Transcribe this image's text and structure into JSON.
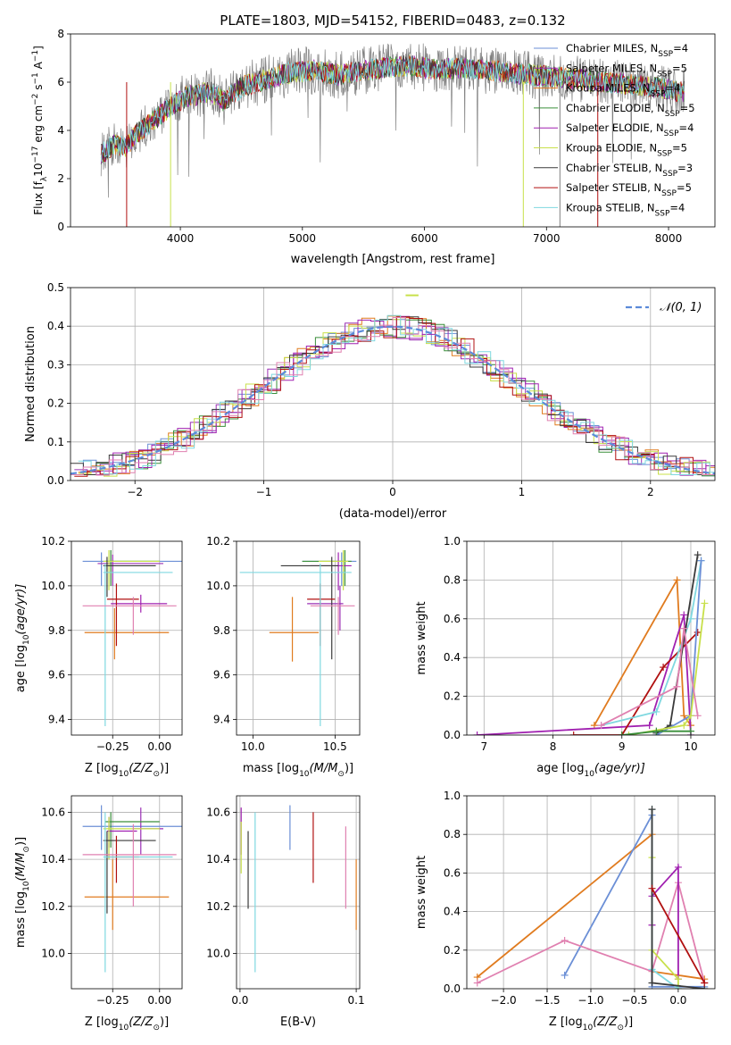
{
  "series_colors": {
    "Chabrier MILES": "#6b8fd6",
    "Salpeter MILES": "#9b30b5",
    "Kroupa MILES": "#e07b1f",
    "Chabrier ELODIE": "#3a8f3a",
    "Salpeter ELODIE": "#a020b0",
    "Kroupa ELODIE": "#c8e04a",
    "Chabrier STELIB": "#3a3a3a",
    "Salpeter STELIB": "#b01010",
    "Kroupa STELIB": "#7fd8e0",
    "data": "#808080",
    "pink": "#e080b0"
  },
  "chart_data": [
    {
      "id": "spectrum",
      "type": "line",
      "title": "PLATE=1803, MJD=54152, FIBERID=0483, z=0.132",
      "xlabel": "wavelength [Angstrom, rest frame]",
      "ylabel_pre": "Flux [f",
      "ylabel_sub": "λ",
      "ylabel_mid": "10",
      "ylabel_sup1": "−17",
      "ylabel_rest": " erg cm",
      "ylabel_sup2": "−2",
      "ylabel_s": " s",
      "ylabel_sup3": "−1",
      "ylabel_end": " A",
      "ylabel_sup4": "−1",
      "ylabel_close": "]",
      "xlim": [
        3100,
        8380
      ],
      "ylim": [
        0,
        8
      ],
      "xticks": [
        "4000",
        "5000",
        "6000",
        "7000",
        "8000"
      ],
      "yticks": [
        "0",
        "2",
        "4",
        "6",
        "8"
      ],
      "continuum": {
        "x": [
          3350,
          3450,
          3550,
          3650,
          3750,
          3850,
          3950,
          4050,
          4150,
          4250,
          4350,
          4500,
          4700,
          4900,
          5100,
          5300,
          5500,
          5700,
          5900,
          6100,
          6300,
          6500,
          6700,
          6900,
          7100,
          7300,
          7500,
          7700,
          7900,
          8100
        ],
        "y": [
          3.0,
          3.4,
          3.3,
          3.9,
          4.3,
          4.7,
          5.1,
          5.4,
          5.5,
          5.6,
          5.2,
          5.8,
          6.1,
          6.4,
          6.5,
          6.3,
          6.5,
          6.6,
          6.7,
          6.5,
          6.6,
          6.5,
          6.4,
          6.3,
          6.2,
          6.1,
          6.0,
          5.9,
          5.8,
          5.6
        ]
      },
      "legend": [
        {
          "name": "Chabrier MILES",
          "n": "4"
        },
        {
          "name": "Salpeter MILES",
          "n": "5"
        },
        {
          "name": "Kroupa MILES",
          "n": "4"
        },
        {
          "name": "Chabrier ELODIE",
          "n": "5"
        },
        {
          "name": "Salpeter ELODIE",
          "n": "4"
        },
        {
          "name": "Kroupa ELODIE",
          "n": "5"
        },
        {
          "name": "Chabrier STELIB",
          "n": "3"
        },
        {
          "name": "Salpeter STELIB",
          "n": "5"
        },
        {
          "name": "Kroupa STELIB",
          "n": "4"
        }
      ],
      "legend_sub": "SSP"
    },
    {
      "id": "residuals",
      "type": "histogram",
      "xlabel": "(data-model)/error",
      "ylabel": "Normed distribution",
      "xlim": [
        -2.5,
        2.5
      ],
      "ylim": [
        0,
        0.5
      ],
      "xticks": [
        "−2",
        "−1",
        "0",
        "1",
        "2"
      ],
      "yticks": [
        "0.0",
        "0.1",
        "0.2",
        "0.3",
        "0.4",
        "0.5"
      ],
      "grid": true,
      "legend": "𝒩(0, 1)",
      "bin_width": 0.1,
      "bin_start": -2.5
    },
    {
      "id": "age_vs_Z",
      "type": "errorbar",
      "xlabel_pre": "Z [log",
      "xlabel_sub": "10",
      "xlabel_post": "(Z/Z",
      "xlabel_sub2": "⊙",
      "xlabel_end": ")]",
      "ylabel_pre": "age  [log",
      "ylabel_sub": "10",
      "ylabel_post": "(age/yr)]",
      "xlim": [
        -0.47,
        0.12
      ],
      "ylim": [
        9.33,
        10.2
      ],
      "xticks": [
        "−0.25",
        "0.00"
      ],
      "yticks": [
        "9.4",
        "9.6",
        "9.8",
        "10.0",
        "10.2"
      ],
      "points": [
        {
          "s": "Chabrier MILES",
          "x": -0.31,
          "xe": [
            -0.41,
            0.12
          ],
          "y": 10.11,
          "ye": [
            10.0,
            10.15
          ]
        },
        {
          "s": "Salpeter MILES",
          "x": -0.25,
          "xe": [
            -0.33,
            0.02
          ],
          "y": 10.1,
          "ye": [
            10.0,
            10.14
          ]
        },
        {
          "s": "Kroupa MILES",
          "x": -0.24,
          "xe": [
            -0.4,
            0.05
          ],
          "y": 9.79,
          "ye": [
            9.67,
            9.9
          ]
        },
        {
          "s": "Chabrier ELODIE",
          "x": -0.26,
          "xe": [
            -0.29,
            0.0
          ],
          "y": 10.11,
          "ye": [
            10.0,
            10.16
          ]
        },
        {
          "s": "Salpeter ELODIE",
          "x": -0.1,
          "xe": [
            -0.26,
            0.04
          ],
          "y": 9.92,
          "ye": [
            9.88,
            9.96
          ]
        },
        {
          "s": "Kroupa ELODIE",
          "x": -0.27,
          "xe": [
            -0.3,
            0.0
          ],
          "y": 10.11,
          "ye": [
            9.98,
            10.16
          ]
        },
        {
          "s": "Chabrier STELIB",
          "x": -0.28,
          "xe": [
            -0.3,
            -0.02
          ],
          "y": 10.09,
          "ye": [
            9.95,
            10.13
          ]
        },
        {
          "s": "Salpeter STELIB",
          "x": -0.23,
          "xe": [
            -0.28,
            -0.11
          ],
          "y": 9.94,
          "ye": [
            9.73,
            10.01
          ]
        },
        {
          "s": "Kroupa STELIB",
          "x": -0.29,
          "xe": [
            -0.3,
            0.07
          ],
          "y": 10.06,
          "ye": [
            9.37,
            10.1
          ]
        },
        {
          "s": "pink",
          "x": -0.14,
          "xe": [
            -0.41,
            0.09
          ],
          "y": 9.91,
          "ye": [
            9.78,
            9.95
          ]
        }
      ]
    },
    {
      "id": "age_vs_mass",
      "type": "errorbar",
      "xlabel_pre": "mass [log",
      "xlabel_sub": "10",
      "xlabel_post": "(M/M",
      "xlabel_sub2": "⊙",
      "xlabel_end": ")]",
      "xlim": [
        9.9,
        10.65
      ],
      "ylim": [
        9.33,
        10.2
      ],
      "xticks": [
        "10.0",
        "10.5"
      ],
      "yticks": [
        "9.4",
        "9.6",
        "9.8",
        "10.0",
        "10.2"
      ],
      "points": [
        {
          "s": "Chabrier MILES",
          "x": 10.54,
          "xe": [
            10.3,
            10.63
          ],
          "y": 10.11,
          "ye": [
            10.0,
            10.15
          ]
        },
        {
          "s": "Salpeter MILES",
          "x": 10.53,
          "xe": [
            10.33,
            10.55
          ],
          "y": 9.92,
          "ye": [
            9.8,
            10.0
          ]
        },
        {
          "s": "Kroupa MILES",
          "x": 10.24,
          "xe": [
            10.1,
            10.4
          ],
          "y": 9.79,
          "ye": [
            9.66,
            9.95
          ]
        },
        {
          "s": "Chabrier ELODIE",
          "x": 10.56,
          "xe": [
            10.3,
            10.6
          ],
          "y": 10.11,
          "ye": [
            10.0,
            10.16
          ]
        },
        {
          "s": "Salpeter ELODIE",
          "x": 10.52,
          "xe": [
            10.35,
            10.6
          ],
          "y": 10.09,
          "ye": [
            9.98,
            10.15
          ]
        },
        {
          "s": "Kroupa ELODIE",
          "x": 10.55,
          "xe": [
            10.4,
            10.58
          ],
          "y": 10.11,
          "ye": [
            9.98,
            10.16
          ]
        },
        {
          "s": "Chabrier STELIB",
          "x": 10.48,
          "xe": [
            10.17,
            10.52
          ],
          "y": 10.09,
          "ye": [
            9.67,
            10.13
          ]
        },
        {
          "s": "Salpeter STELIB",
          "x": 10.41,
          "xe": [
            10.33,
            10.5
          ],
          "y": 9.94,
          "ye": [
            9.73,
            10.01
          ]
        },
        {
          "s": "Kroupa STELIB",
          "x": 10.41,
          "xe": [
            9.92,
            10.6
          ],
          "y": 10.06,
          "ye": [
            9.37,
            10.1
          ]
        },
        {
          "s": "pink",
          "x": 10.52,
          "xe": [
            10.35,
            10.62
          ],
          "y": 9.91,
          "ye": [
            9.78,
            9.95
          ]
        }
      ]
    },
    {
      "id": "weight_vs_age",
      "type": "line",
      "xlabel_pre": "age  [log",
      "xlabel_sub": "10",
      "xlabel_post": "(age/yr)]",
      "ylabel": "mass weight",
      "xlim": [
        6.75,
        10.35
      ],
      "ylim": [
        0,
        1
      ],
      "xticks": [
        "7",
        "8",
        "9",
        "10"
      ],
      "yticks": [
        "0.0",
        "0.2",
        "0.4",
        "0.6",
        "0.8",
        "1.0"
      ],
      "grid": true,
      "series": [
        {
          "s": "Kroupa MILES",
          "x": [
            8.6,
            9.8,
            9.9,
            10.0
          ],
          "y": [
            0.05,
            0.8,
            0.1,
            0.05
          ]
        },
        {
          "s": "Salpeter ELODIE",
          "x": [
            6.9,
            9.4,
            9.9,
            10.0
          ],
          "y": [
            0.0,
            0.05,
            0.62,
            0.0
          ]
        },
        {
          "s": "Salpeter STELIB",
          "x": [
            8.3,
            9.0,
            9.6,
            10.1
          ],
          "y": [
            0.0,
            0.0,
            0.35,
            0.53
          ]
        },
        {
          "s": "Kroupa STELIB",
          "x": [
            8.7,
            9.5,
            10.0,
            10.15
          ],
          "y": [
            0.05,
            0.12,
            0.6,
            0.9
          ]
        },
        {
          "s": "Chabrier STELIB",
          "x": [
            9.5,
            9.7,
            10.1
          ],
          "y": [
            0.01,
            0.05,
            0.93
          ]
        },
        {
          "s": "Chabrier MILES",
          "x": [
            9.5,
            10.0,
            10.15
          ],
          "y": [
            0.0,
            0.1,
            0.9
          ]
        },
        {
          "s": "Kroupa ELODIE",
          "x": [
            9.1,
            9.9,
            10.0,
            10.2
          ],
          "y": [
            0.0,
            0.05,
            0.1,
            0.68
          ]
        },
        {
          "s": "pink",
          "x": [
            8.7,
            9.8,
            9.9,
            10.1
          ],
          "y": [
            0.05,
            0.25,
            0.55,
            0.1
          ]
        },
        {
          "s": "Chabrier ELODIE",
          "x": [
            9.0,
            9.5,
            10.0
          ],
          "y": [
            0.0,
            0.02,
            0.02
          ]
        }
      ]
    },
    {
      "id": "mass_vs_Z",
      "type": "errorbar",
      "xlabel_pre": "Z [log",
      "xlabel_sub": "10",
      "xlabel_post": "(Z/Z",
      "xlabel_sub2": "⊙",
      "xlabel_end": ")]",
      "ylabel_pre": "mass [log",
      "ylabel_sub": "10",
      "ylabel_post": "(M/M",
      "ylabel_sub2": "⊙",
      "ylabel_end": ")]",
      "xlim": [
        -0.47,
        0.12
      ],
      "ylim": [
        9.85,
        10.67
      ],
      "xticks": [
        "−0.25",
        "0.00"
      ],
      "yticks": [
        "10.0",
        "10.2",
        "10.4",
        "10.6"
      ],
      "points": [
        {
          "s": "Chabrier MILES",
          "x": -0.31,
          "xe": [
            -0.41,
            0.12
          ],
          "y": 10.54,
          "ye": [
            10.44,
            10.63
          ]
        },
        {
          "s": "Salpeter MILES",
          "x": -0.1,
          "xe": [
            -0.14,
            0.02
          ],
          "y": 10.53,
          "ye": [
            10.42,
            10.62
          ]
        },
        {
          "s": "Kroupa MILES",
          "x": -0.25,
          "xe": [
            -0.4,
            0.05
          ],
          "y": 10.24,
          "ye": [
            10.1,
            10.4
          ]
        },
        {
          "s": "Chabrier ELODIE",
          "x": -0.26,
          "xe": [
            -0.29,
            0.0
          ],
          "y": 10.56,
          "ye": [
            10.45,
            10.6
          ]
        },
        {
          "s": "Salpeter ELODIE",
          "x": -0.27,
          "xe": [
            -0.28,
            -0.12
          ],
          "y": 10.52,
          "ye": [
            10.45,
            10.58
          ]
        },
        {
          "s": "Kroupa ELODIE",
          "x": -0.27,
          "xe": [
            -0.3,
            0.0
          ],
          "y": 10.53,
          "ye": [
            10.4,
            10.58
          ]
        },
        {
          "s": "Chabrier STELIB",
          "x": -0.28,
          "xe": [
            -0.3,
            -0.02
          ],
          "y": 10.48,
          "ye": [
            10.17,
            10.52
          ]
        },
        {
          "s": "Salpeter STELIB",
          "x": -0.23,
          "xe": [
            -0.28,
            -0.11
          ],
          "y": 10.41,
          "ye": [
            10.3,
            10.5
          ]
        },
        {
          "s": "Kroupa STELIB",
          "x": -0.29,
          "xe": [
            -0.3,
            0.07
          ],
          "y": 10.41,
          "ye": [
            9.92,
            10.6
          ]
        },
        {
          "s": "pink",
          "x": -0.14,
          "xe": [
            -0.41,
            0.09
          ],
          "y": 10.42,
          "ye": [
            10.2,
            10.55
          ]
        }
      ]
    },
    {
      "id": "mass_vs_ebv",
      "type": "errorbar",
      "xlabel": "E(B-V)",
      "xlim": [
        -0.003,
        0.103
      ],
      "ylim": [
        9.85,
        10.67
      ],
      "xticks": [
        "0.0",
        "0.1"
      ],
      "yticks": [
        "10.0",
        "10.2",
        "10.4",
        "10.6"
      ],
      "points": [
        {
          "s": "Chabrier MILES",
          "x": 0.043,
          "y": 10.54,
          "ye": [
            10.44,
            10.63
          ]
        },
        {
          "s": "Salpeter ELODIE",
          "x": 0.001,
          "y": 10.53,
          "ye": [
            10.42,
            10.62
          ]
        },
        {
          "s": "Kroupa MILES",
          "x": 0.1,
          "y": 10.24,
          "ye": [
            10.1,
            10.4
          ]
        },
        {
          "s": "Kroupa ELODIE",
          "x": 0.001,
          "y": 10.45,
          "ye": [
            10.34,
            10.56
          ]
        },
        {
          "s": "Chabrier STELIB",
          "x": 0.007,
          "y": 10.35,
          "ye": [
            10.19,
            10.52
          ]
        },
        {
          "s": "Salpeter STELIB",
          "x": 0.063,
          "y": 10.42,
          "ye": [
            10.3,
            10.6
          ]
        },
        {
          "s": "Kroupa STELIB",
          "x": 0.013,
          "y": 10.41,
          "ye": [
            9.92,
            10.6
          ]
        },
        {
          "s": "pink",
          "x": 0.091,
          "y": 10.36,
          "ye": [
            10.19,
            10.54
          ]
        }
      ]
    },
    {
      "id": "weight_vs_Z",
      "type": "line",
      "xlabel_pre": "Z [log",
      "xlabel_sub": "10",
      "xlabel_post": "(Z/Z",
      "xlabel_sub2": "⊙",
      "xlabel_end": ")]",
      "ylabel": "mass weight",
      "xlim": [
        -2.42,
        0.42
      ],
      "ylim": [
        0,
        1
      ],
      "xticks": [
        "−2.0",
        "−1.5",
        "−1.0",
        "−0.5",
        "0.0"
      ],
      "yticks": [
        "0.0",
        "0.2",
        "0.4",
        "0.6",
        "0.8",
        "1.0"
      ],
      "grid": true,
      "series": [
        {
          "s": "Kroupa MILES",
          "x": [
            -2.3,
            -0.3,
            -0.3,
            0.3
          ],
          "y": [
            0.06,
            0.8,
            0.09,
            0.05
          ]
        },
        {
          "s": "Chabrier MILES",
          "x": [
            -1.3,
            -0.3,
            -0.3,
            0.3
          ],
          "y": [
            0.07,
            0.9,
            0.01,
            0.01
          ]
        },
        {
          "s": "pink",
          "x": [
            -2.3,
            -1.3,
            -0.3,
            0.0,
            0.3
          ],
          "y": [
            0.03,
            0.25,
            0.09,
            0.55,
            0.03
          ]
        },
        {
          "s": "Salpeter ELODIE",
          "x": [
            -0.3,
            -0.3,
            0.0,
            0.0
          ],
          "y": [
            0.33,
            0.48,
            0.63,
            0.05
          ]
        },
        {
          "s": "Kroupa ELODIE",
          "x": [
            -0.3,
            -0.3,
            0.0,
            0.0
          ],
          "y": [
            0.68,
            0.2,
            0.05,
            0.0
          ]
        },
        {
          "s": "Kroupa STELIB",
          "x": [
            -0.3,
            -0.3,
            0.0
          ],
          "y": [
            0.93,
            0.1,
            0.0
          ]
        },
        {
          "s": "Chabrier STELIB",
          "x": [
            -0.3,
            -0.3,
            0.3
          ],
          "y": [
            0.93,
            0.03,
            0.0
          ]
        },
        {
          "s": "Salpeter STELIB",
          "x": [
            -0.3,
            0.3
          ],
          "y": [
            0.52,
            0.03
          ]
        }
      ]
    }
  ]
}
